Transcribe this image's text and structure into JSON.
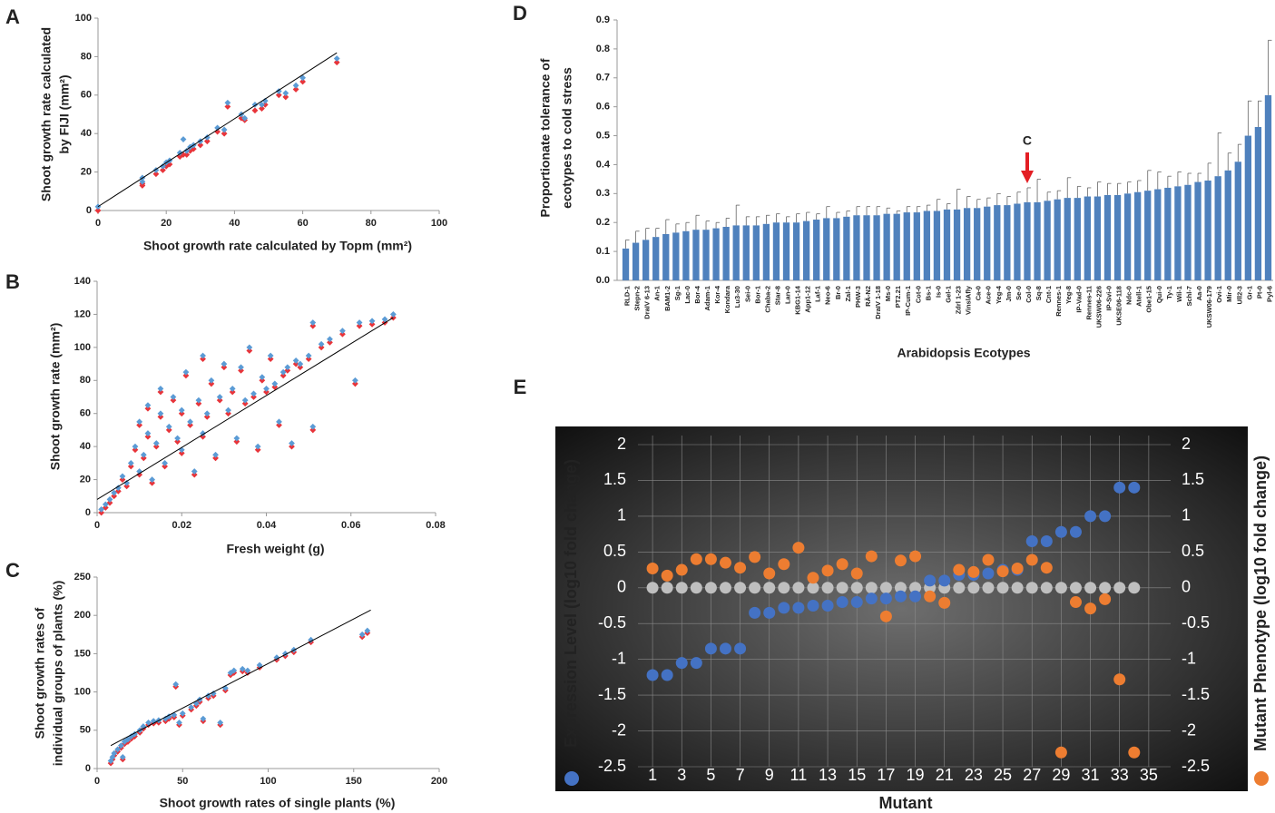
{
  "chart_data": [
    {
      "type": "scatter",
      "label": "A",
      "ylabel": [
        "Shoot growth rate calculated",
        "by FIJI (mm²)"
      ],
      "xlabel": "Shoot growth rate calculated by Topm (mm²)",
      "x": [
        0,
        13,
        13,
        17,
        19,
        20,
        21,
        24,
        25,
        26,
        27,
        28,
        30,
        32,
        35,
        37,
        38,
        42,
        43,
        46,
        48,
        49,
        53,
        55,
        58,
        60,
        70
      ],
      "series": [
        {
          "color": "#e8343a",
          "values": [
            0,
            14,
            13,
            19,
            21,
            23,
            24,
            28,
            29,
            29,
            31,
            32,
            34,
            36,
            41,
            40,
            54,
            48,
            47,
            52,
            53,
            55,
            60,
            59,
            63,
            67,
            77
          ]
        },
        {
          "color": "#5b9bd5",
          "values": [
            2,
            17,
            15,
            21,
            23,
            25,
            26,
            30,
            37,
            31,
            33,
            34,
            36,
            38,
            43,
            42,
            56,
            50,
            48,
            55,
            55,
            57,
            62,
            61,
            65,
            69,
            79
          ]
        }
      ],
      "trendline": {
        "x": [
          0,
          70
        ],
        "y": [
          2,
          82
        ]
      },
      "xlim": [
        0,
        100
      ],
      "xticks": [
        0,
        20,
        40,
        60,
        80,
        100
      ],
      "ylim": [
        0,
        100
      ],
      "yticks": [
        0,
        20,
        40,
        60,
        80,
        100
      ]
    },
    {
      "type": "scatter",
      "label": "B",
      "ylabel": [
        "Shoot growth rate (mm²)"
      ],
      "xlabel": "Fresh weight (g)",
      "x": [
        0.001,
        0.002,
        0.003,
        0.004,
        0.005,
        0.006,
        0.007,
        0.008,
        0.009,
        0.01,
        0.01,
        0.011,
        0.012,
        0.012,
        0.013,
        0.014,
        0.015,
        0.015,
        0.016,
        0.017,
        0.018,
        0.019,
        0.02,
        0.02,
        0.021,
        0.022,
        0.023,
        0.024,
        0.025,
        0.025,
        0.026,
        0.027,
        0.028,
        0.029,
        0.03,
        0.031,
        0.032,
        0.033,
        0.034,
        0.035,
        0.036,
        0.037,
        0.038,
        0.039,
        0.04,
        0.041,
        0.042,
        0.043,
        0.044,
        0.045,
        0.046,
        0.047,
        0.048,
        0.05,
        0.051,
        0.051,
        0.053,
        0.055,
        0.058,
        0.061,
        0.062,
        0.065,
        0.068,
        0.07
      ],
      "series": [
        {
          "color": "#e8343a",
          "values": [
            0,
            3,
            6,
            10,
            13,
            20,
            16,
            28,
            38,
            23,
            53,
            33,
            46,
            63,
            18,
            40,
            58,
            73,
            28,
            50,
            68,
            43,
            36,
            60,
            83,
            53,
            23,
            66,
            93,
            46,
            58,
            78,
            33,
            68,
            88,
            60,
            73,
            43,
            86,
            66,
            98,
            70,
            38,
            80,
            73,
            93,
            76,
            53,
            83,
            86,
            40,
            90,
            88,
            93,
            113,
            50,
            100,
            103,
            108,
            78,
            113,
            114,
            115,
            118
          ]
        },
        {
          "color": "#5b9bd5",
          "values": [
            2,
            5,
            8,
            12,
            15,
            22,
            18,
            30,
            40,
            25,
            55,
            35,
            48,
            65,
            20,
            42,
            60,
            75,
            30,
            52,
            70,
            45,
            38,
            62,
            85,
            55,
            25,
            68,
            95,
            48,
            60,
            80,
            35,
            70,
            90,
            62,
            75,
            45,
            88,
            68,
            100,
            72,
            40,
            82,
            75,
            95,
            78,
            55,
            85,
            88,
            42,
            92,
            90,
            95,
            115,
            52,
            102,
            105,
            110,
            80,
            115,
            116,
            117,
            120
          ]
        }
      ],
      "trendline": {
        "x": [
          0,
          0.07
        ],
        "y": [
          8,
          118
        ]
      },
      "xlim": [
        0,
        0.08
      ],
      "xticks": [
        0,
        0.02,
        0.04,
        0.06,
        0.08
      ],
      "ylim": [
        0,
        140
      ],
      "yticks": [
        0,
        20,
        40,
        60,
        80,
        100,
        120,
        140
      ]
    },
    {
      "type": "scatter",
      "label": "C",
      "ylabel": [
        "Shoot growth rates of",
        "individual groups of plants (%)"
      ],
      "xlabel": "Shoot growth rates of single plants (%)",
      "x": [
        8,
        9,
        10,
        12,
        14,
        15,
        16,
        18,
        20,
        22,
        25,
        27,
        30,
        33,
        36,
        40,
        42,
        45,
        46,
        48,
        50,
        55,
        58,
        60,
        62,
        65,
        68,
        72,
        75,
        78,
        80,
        85,
        88,
        95,
        105,
        110,
        115,
        125,
        155,
        158
      ],
      "series": [
        {
          "color": "#e8343a",
          "values": [
            7,
            12,
            17,
            22,
            27,
            12,
            32,
            35,
            39,
            42,
            47,
            52,
            57,
            59,
            60,
            62,
            65,
            67,
            107,
            57,
            69,
            77,
            82,
            87,
            62,
            92,
            95,
            57,
            102,
            122,
            125,
            127,
            125,
            132,
            142,
            147,
            152,
            165,
            172,
            177
          ]
        },
        {
          "color": "#5b9bd5",
          "values": [
            10,
            15,
            20,
            25,
            30,
            15,
            35,
            38,
            42,
            45,
            50,
            55,
            60,
            62,
            63,
            65,
            68,
            70,
            110,
            60,
            72,
            80,
            85,
            90,
            65,
            95,
            98,
            60,
            105,
            125,
            128,
            130,
            128,
            135,
            145,
            150,
            155,
            168,
            175,
            180
          ]
        }
      ],
      "trendline": {
        "x": [
          8,
          160
        ],
        "y": [
          30,
          207
        ]
      },
      "xlim": [
        0,
        200
      ],
      "xticks": [
        0,
        50,
        100,
        150,
        200
      ],
      "ylim": [
        0,
        250
      ],
      "yticks": [
        0,
        50,
        100,
        150,
        200,
        250
      ]
    },
    {
      "type": "bar",
      "label": "D",
      "ylabel": [
        "Proportionate tolerance of",
        "ecotypes to cold stress"
      ],
      "xlabel": "Arabidopsis Ecotypes",
      "annotation": "C",
      "categories": [
        "RLD-1",
        "Stepn-2",
        "DraIV 6-13",
        "An-1",
        "BAM1-2",
        "Sg-1",
        "Lac-0",
        "Bor-4",
        "Adam-1",
        "Kor-4",
        "Kondara",
        "Lu3-30",
        "Sei-0",
        "Bor-1",
        "Chaba-2",
        "Star-8",
        "Lan-0",
        "KBG1-14",
        "App1-12",
        "Laf-1",
        "Neo-6",
        "Br-0",
        "Zal-1",
        "PHW-3",
        "RÄ-N2",
        "DraIV 1-18",
        "Ms-0",
        "PT2.21",
        "IP-Cum-1",
        "Cot-0",
        "Bs-1",
        "Is-0",
        "Gel-1",
        "Zdrl 1-23",
        "VinslAfly",
        "Ca-0",
        "Ace-0",
        "Yeg-4",
        "Jm-0",
        "Se-0",
        "Col-0",
        "Sq-8",
        "Cnt-1",
        "Rennes-1",
        "Yeg-8",
        "IP-Vad-0",
        "Rennes-11",
        "UKSW06-226",
        "IP-Svi-0",
        "UKSE06-118",
        "Ndc-0",
        "Atell-1",
        "Obe1-15",
        "Qui-0",
        "Ty-1",
        "Wil-1",
        "Schl-7",
        "Aa-0",
        "UKSW06-179",
        "Ovi-1",
        "Mir-0",
        "Ull2-3",
        "Gr-1",
        "Pt-0",
        "Pyl-6"
      ],
      "values": [
        0.11,
        0.13,
        0.14,
        0.15,
        0.16,
        0.165,
        0.17,
        0.175,
        0.175,
        0.18,
        0.185,
        0.19,
        0.19,
        0.19,
        0.195,
        0.2,
        0.2,
        0.2,
        0.205,
        0.21,
        0.215,
        0.215,
        0.22,
        0.225,
        0.225,
        0.225,
        0.23,
        0.23,
        0.235,
        0.235,
        0.24,
        0.24,
        0.245,
        0.245,
        0.25,
        0.25,
        0.255,
        0.26,
        0.26,
        0.265,
        0.27,
        0.27,
        0.275,
        0.28,
        0.285,
        0.285,
        0.29,
        0.29,
        0.295,
        0.295,
        0.3,
        0.305,
        0.31,
        0.315,
        0.32,
        0.325,
        0.33,
        0.34,
        0.345,
        0.36,
        0.38,
        0.41,
        0.5,
        0.53,
        0.64
      ],
      "errors": [
        0.03,
        0.04,
        0.04,
        0.03,
        0.05,
        0.03,
        0.03,
        0.05,
        0.03,
        0.02,
        0.03,
        0.07,
        0.03,
        0.03,
        0.03,
        0.03,
        0.02,
        0.03,
        0.03,
        0.02,
        0.04,
        0.02,
        0.02,
        0.03,
        0.03,
        0.03,
        0.02,
        0.01,
        0.02,
        0.02,
        0.02,
        0.04,
        0.02,
        0.07,
        0.04,
        0.03,
        0.03,
        0.04,
        0.03,
        0.04,
        0.05,
        0.08,
        0.03,
        0.03,
        0.07,
        0.04,
        0.03,
        0.05,
        0.04,
        0.04,
        0.04,
        0.04,
        0.07,
        0.06,
        0.04,
        0.05,
        0.04,
        0.03,
        0.06,
        0.15,
        0.06,
        0.06,
        0.12,
        0.09,
        0.19
      ],
      "color": "#4f81bd",
      "ylim": [
        0,
        0.9
      ],
      "yticks": [
        {
          "value": 0,
          "label": "0.0"
        },
        0.1,
        0.2,
        0.3,
        0.4,
        0.5,
        0.6,
        0.7,
        0.8,
        0.9
      ]
    },
    {
      "type": "dot",
      "label": "E",
      "xlabel": "Mutant",
      "ylabel": "Expression Level (log10 fold change)",
      "y2label": "Mutant Phenotype (log10 fold change)",
      "x": [
        1,
        2,
        3,
        4,
        5,
        6,
        7,
        8,
        9,
        10,
        11,
        12,
        13,
        14,
        15,
        16,
        17,
        18,
        19,
        20,
        21,
        22,
        23,
        24,
        25,
        26,
        27,
        28,
        29,
        30,
        31,
        32,
        33,
        34
      ],
      "series": [
        {
          "color": "#bfbfbf",
          "values": [
            0,
            0,
            0,
            0,
            0,
            0,
            0,
            0,
            0,
            0,
            0,
            0,
            0,
            0,
            0,
            0,
            0,
            0,
            0,
            0,
            0,
            0,
            0,
            0,
            0,
            0,
            0,
            0,
            0,
            0,
            0,
            0,
            0,
            0
          ]
        },
        {
          "color": "#4472c4",
          "values": [
            -1.22,
            -1.22,
            -1.05,
            -1.05,
            -0.85,
            -0.85,
            -0.85,
            -0.35,
            -0.35,
            -0.28,
            -0.28,
            -0.25,
            -0.25,
            -0.2,
            -0.2,
            -0.15,
            -0.15,
            -0.12,
            -0.12,
            0.1,
            0.1,
            0.18,
            0.18,
            0.2,
            0.25,
            0.25,
            0.65,
            0.65,
            0.78,
            0.78,
            1.0,
            1.0,
            1.4,
            1.4
          ]
        },
        {
          "color": "#ed7d31",
          "axis": "y2",
          "values": [
            0.27,
            0.17,
            0.25,
            0.4,
            0.4,
            0.35,
            0.28,
            0.43,
            0.2,
            0.33,
            0.56,
            0.14,
            0.24,
            0.33,
            0.2,
            0.44,
            -0.4,
            0.38,
            0.44,
            -0.12,
            -0.21,
            0.25,
            0.22,
            0.39,
            0.23,
            0.27,
            0.39,
            0.28,
            -2.3,
            -0.2,
            -0.29,
            -0.16,
            -1.28,
            -2.3
          ]
        }
      ],
      "xlim": [
        0,
        36.5
      ],
      "xticks": [
        1,
        3,
        5,
        7,
        9,
        11,
        13,
        15,
        17,
        19,
        21,
        23,
        25,
        27,
        29,
        31,
        33,
        35
      ],
      "ylim": [
        -2.5,
        2
      ],
      "yticks": [
        -2.5,
        -2,
        -1.5,
        -1,
        -0.5,
        0,
        0.5,
        1,
        1.5,
        2
      ],
      "y2lim": [
        -2.5,
        2
      ],
      "y2ticks": [
        -2.5,
        -2,
        -1.5,
        -1,
        -0.5,
        0,
        0.5,
        1,
        1.5,
        2
      ],
      "grid": true
    }
  ]
}
